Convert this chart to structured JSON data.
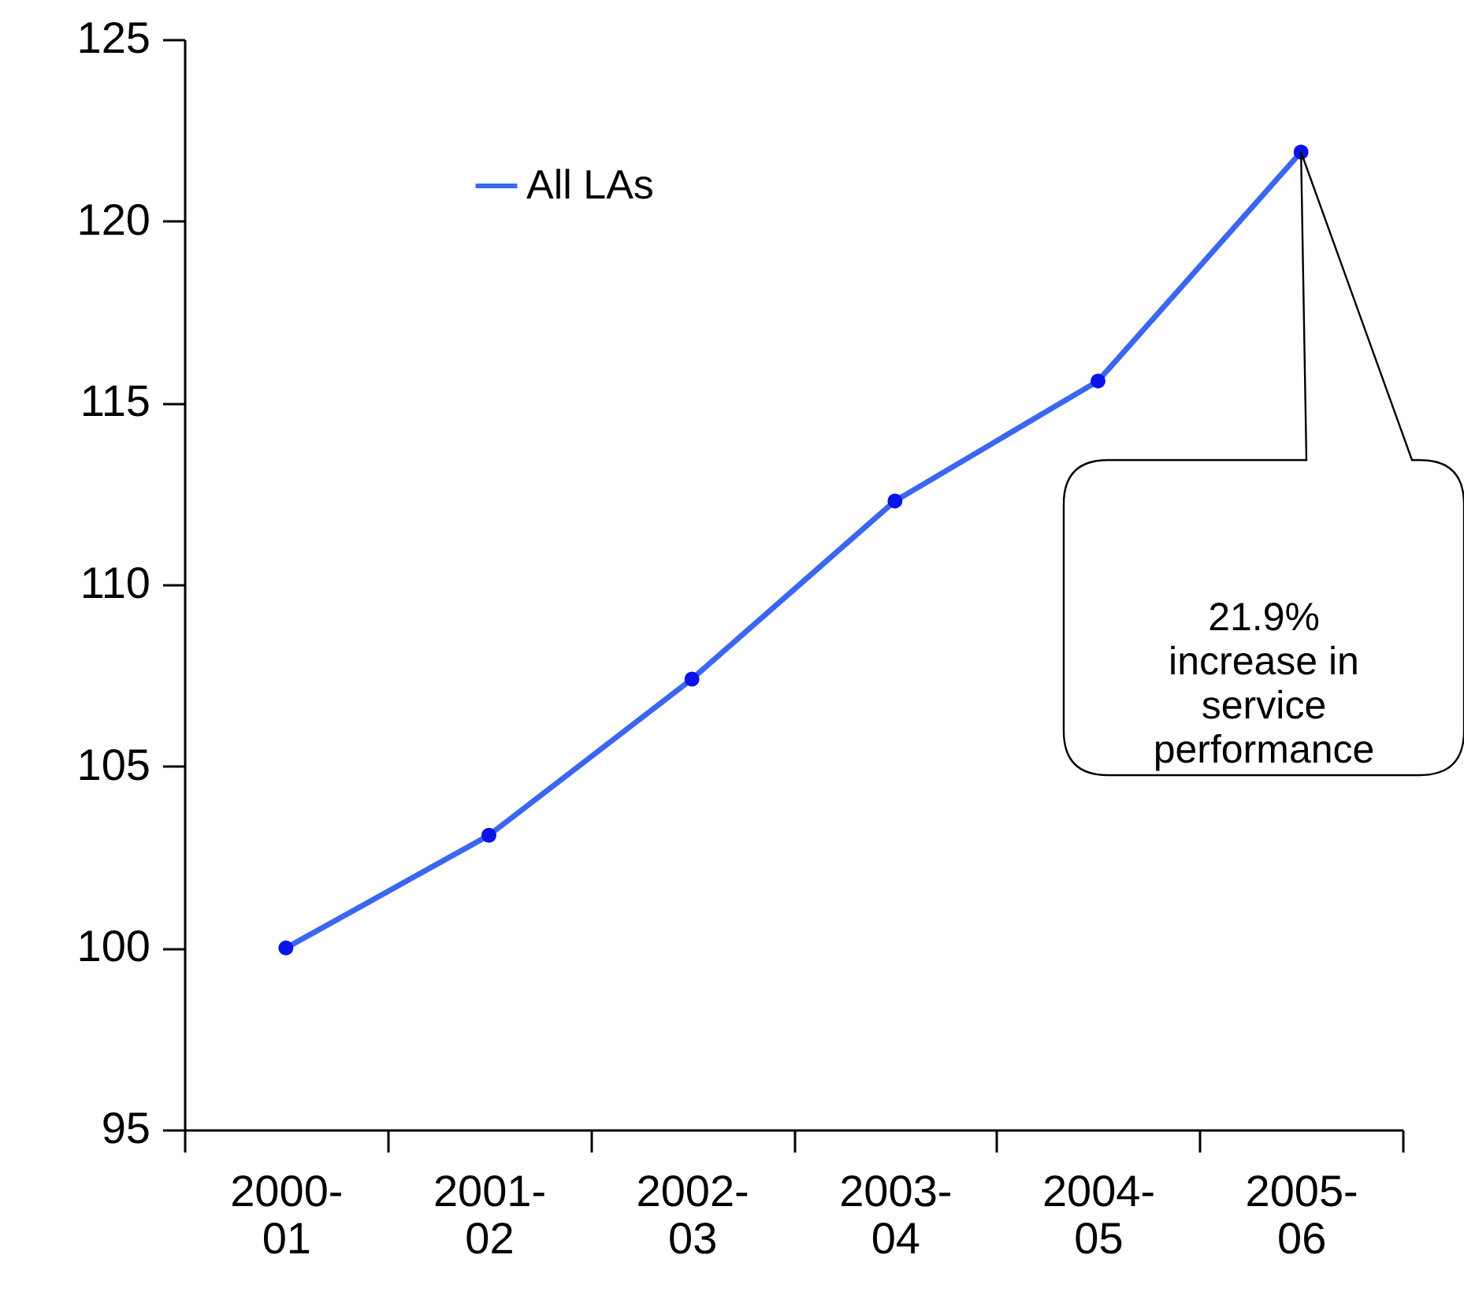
{
  "chart_data": {
    "type": "line",
    "categories": [
      "2000-01",
      "2001-02",
      "2002-03",
      "2003-04",
      "2004-05",
      "2005-06"
    ],
    "series": [
      {
        "name": "All LAs",
        "color": "#3a66f2",
        "values": [
          100.0,
          103.1,
          107.4,
          112.3,
          115.6,
          121.9
        ]
      }
    ],
    "ylim": [
      95,
      125
    ],
    "yticks": [
      95,
      100,
      105,
      110,
      115,
      120,
      125
    ],
    "grid": false,
    "legend": "top left",
    "marker": "circle",
    "line_style": "solid",
    "annotations": [
      "21.9% increase in service performance"
    ]
  }
}
